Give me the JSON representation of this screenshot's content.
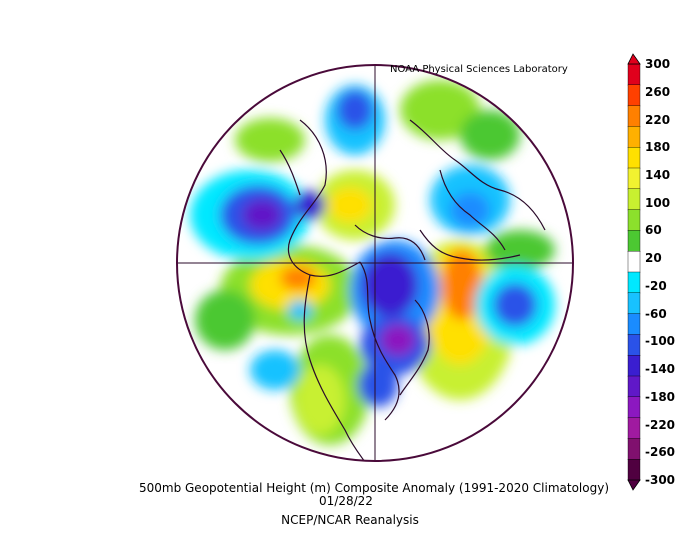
{
  "credit": "NOAA Physical Sciences Laboratory",
  "caption": {
    "title": "500mb Geopotential Height (m) Composite Anomaly (1991-2020 Climatology)",
    "date": "01/28/22",
    "source": "NCEP/NCAR Reanalysis"
  },
  "colorbar": {
    "labels": [
      "300",
      "260",
      "220",
      "180",
      "140",
      "100",
      "60",
      "20",
      "-20",
      "-60",
      "-100",
      "-140",
      "-180",
      "-220",
      "-260",
      "-300"
    ],
    "colors": [
      "#e0001c",
      "#ff4000",
      "#ff8000",
      "#ffb000",
      "#ffe000",
      "#f2f230",
      "#c8f030",
      "#8ce02c",
      "#4cc832",
      "#ffffff",
      "#00e8ff",
      "#18c2ff",
      "#1a8cff",
      "#2a52e8",
      "#3a1ed0",
      "#6018c8",
      "#8c18c0",
      "#a01aa0",
      "#80106e",
      "#500040"
    ]
  },
  "map": {
    "projection": "north-polar-stereographic",
    "colors": {
      "outline": "#4a0a3a",
      "coast": "#2a0a2a"
    }
  }
}
